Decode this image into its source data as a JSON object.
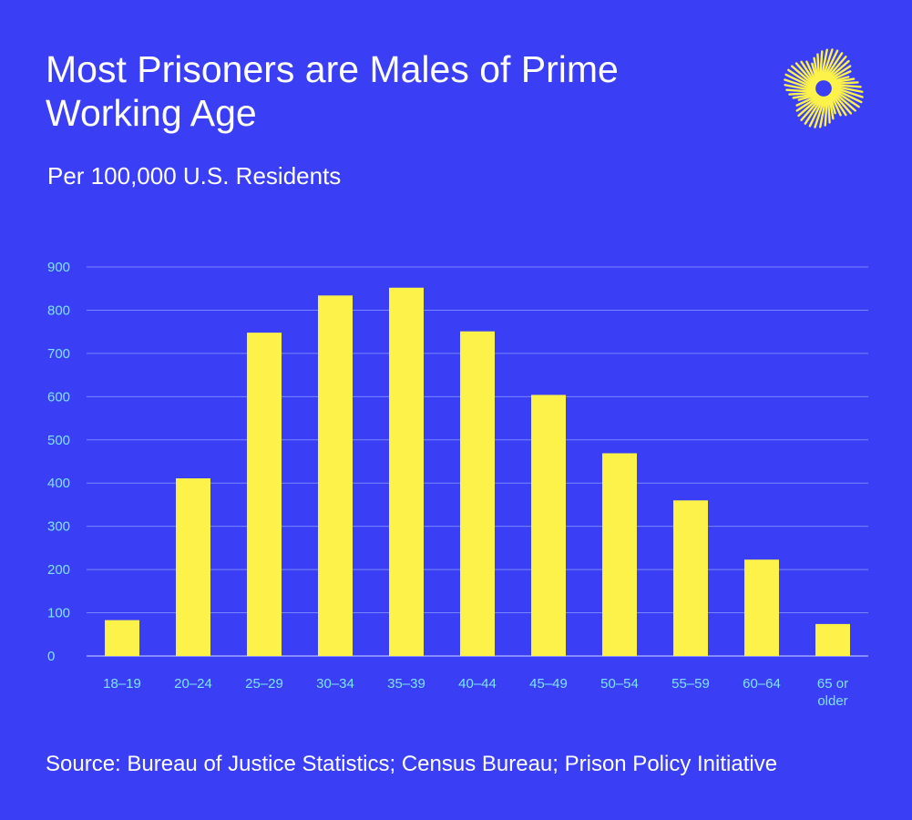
{
  "title": "Most Prisoners are Males of Prime Working Age",
  "subtitle": "Per 100,000 U.S. Residents",
  "source": "Source: Bureau of Justice Statistics; Census Bureau; Prison Policy Initiative",
  "logo_icon": "sunburst-logo-icon",
  "colors": {
    "background": "#3a3ff5",
    "bar": "#fdf24a",
    "gridline": "#7a86ff",
    "tick_label": "#7fe3ff",
    "text": "#ffffff"
  },
  "chart_data": {
    "type": "bar",
    "categories": [
      "18–19",
      "20–24",
      "25–29",
      "30–34",
      "35–39",
      "40–44",
      "45–49",
      "50–54",
      "55–59",
      "60–64",
      "65 or older"
    ],
    "values": [
      83,
      411,
      748,
      834,
      852,
      751,
      604,
      469,
      360,
      223,
      74
    ],
    "ylim": [
      0,
      900
    ],
    "yticks": [
      0,
      100,
      200,
      300,
      400,
      500,
      600,
      700,
      800,
      900
    ],
    "grid": true,
    "legend": "none",
    "xlabel": "",
    "ylabel": ""
  }
}
